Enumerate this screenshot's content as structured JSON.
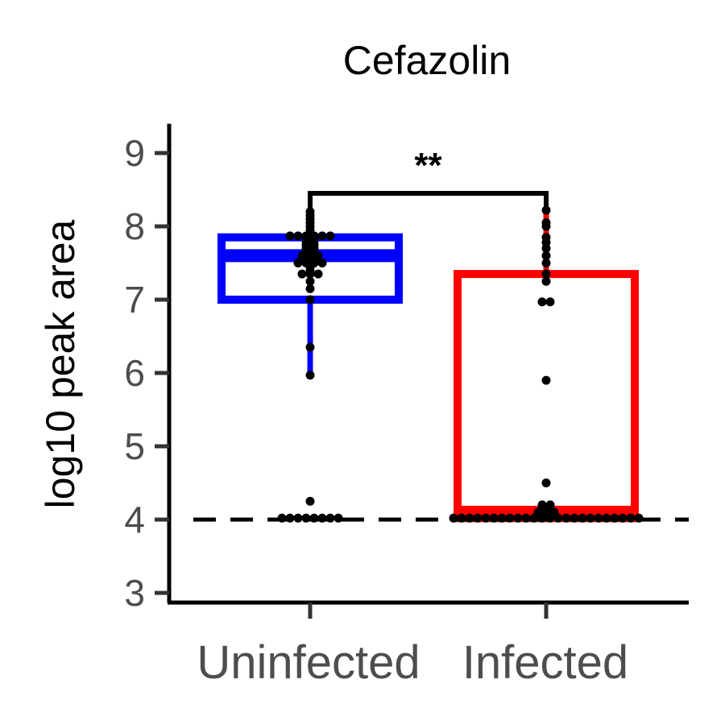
{
  "chart_data": {
    "type": "box",
    "title": "Cefazolin",
    "xlabel": "",
    "ylabel": "log10 peak area",
    "ylim": [
      2.8,
      9.4
    ],
    "yticks": [
      3,
      4,
      5,
      6,
      7,
      8,
      9
    ],
    "categories": [
      "Uninfected",
      "Infected"
    ],
    "grid": false,
    "legend": "none",
    "reference_line": {
      "y": 4.0,
      "style": "dashed",
      "color": "#000000"
    },
    "significance": {
      "label": "**",
      "between": [
        "Uninfected",
        "Infected"
      ],
      "y": 8.45
    },
    "series": [
      {
        "category": "Uninfected",
        "color": "#0000ff",
        "box": {
          "q1": 7.0,
          "median": 7.6,
          "q3": 7.85,
          "whisker_low": 6.0,
          "whisker_high": 8.2
        },
        "points": [
          4.02,
          4.02,
          4.02,
          4.02,
          4.02,
          4.02,
          4.02,
          4.02,
          4.25,
          5.97,
          6.35,
          7.0,
          7.15,
          7.25,
          7.35,
          7.35,
          7.35,
          7.4,
          7.45,
          7.5,
          7.5,
          7.5,
          7.5,
          7.55,
          7.55,
          7.6,
          7.6,
          7.6,
          7.65,
          7.65,
          7.7,
          7.7,
          7.75,
          7.75,
          7.8,
          7.8,
          7.85,
          7.85,
          7.87,
          7.87,
          7.87,
          7.87,
          7.87,
          7.87,
          7.9,
          7.95,
          8.0,
          8.05,
          8.1,
          8.15,
          8.2
        ]
      },
      {
        "category": "Infected",
        "color": "#ff0000",
        "box": {
          "q1": 4.02,
          "median": 4.1,
          "q3": 7.35,
          "whisker_low": 4.02,
          "whisker_high": 8.2
        },
        "points": [
          4.02,
          4.02,
          4.02,
          4.02,
          4.02,
          4.02,
          4.02,
          4.02,
          4.02,
          4.02,
          4.02,
          4.02,
          4.02,
          4.02,
          4.02,
          4.02,
          4.02,
          4.02,
          4.02,
          4.02,
          4.02,
          4.02,
          4.02,
          4.02,
          4.1,
          4.1,
          4.1,
          4.15,
          4.15,
          4.2,
          4.2,
          4.5,
          5.9,
          6.97,
          6.97,
          7.25,
          7.35,
          7.5,
          7.6,
          7.7,
          7.78,
          7.85,
          8.0,
          8.05,
          8.22
        ]
      }
    ]
  }
}
